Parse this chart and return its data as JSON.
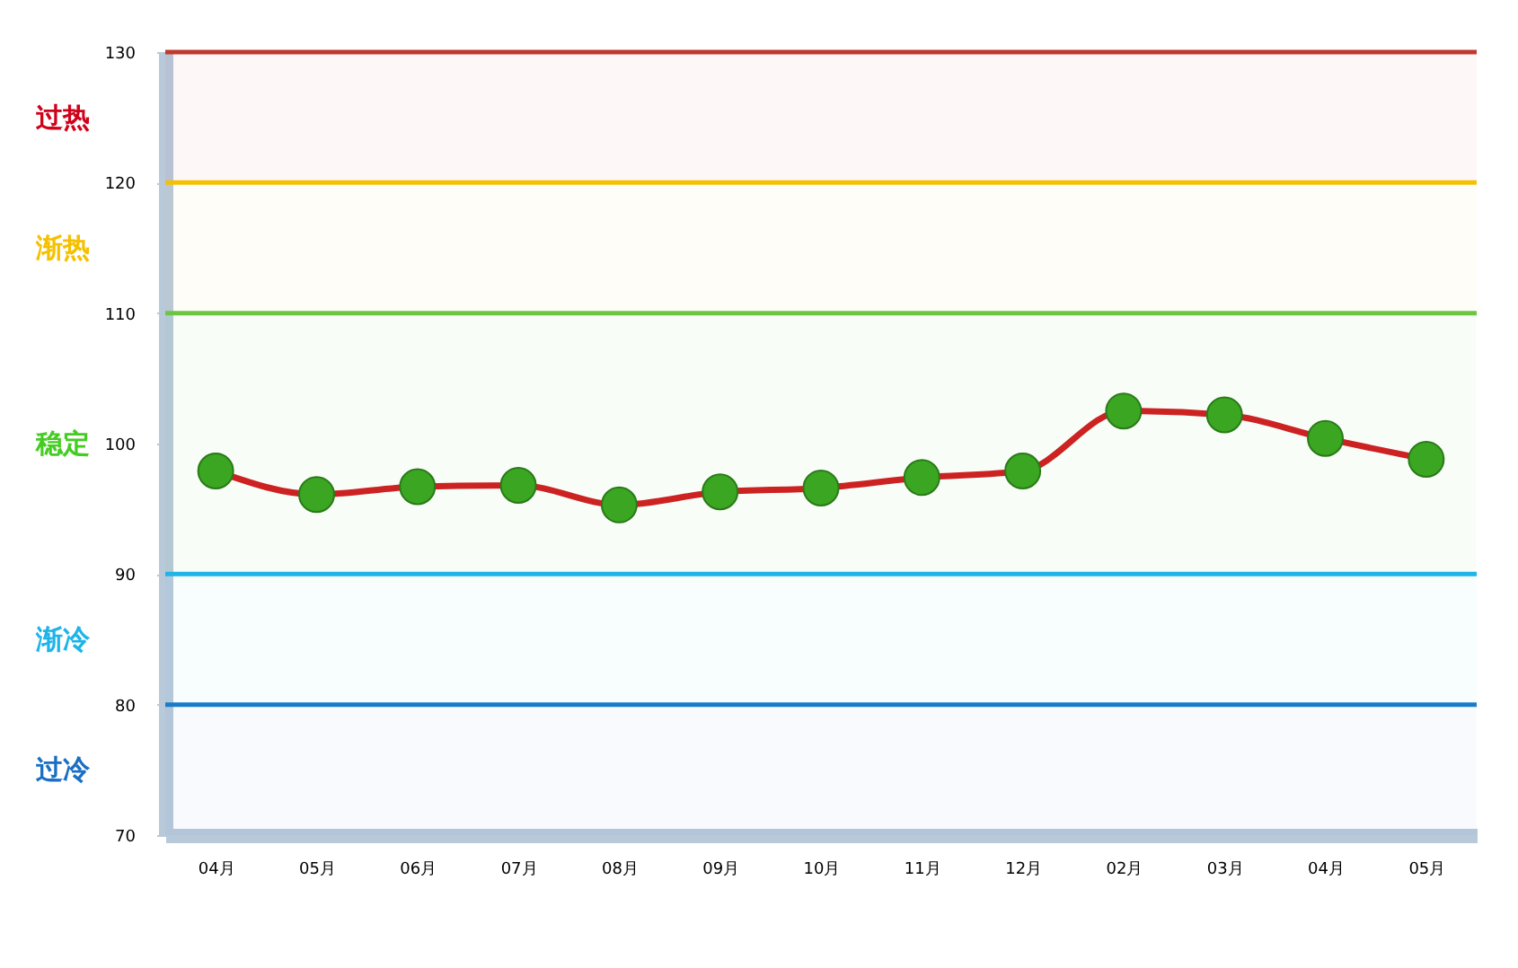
{
  "chart_data": {
    "type": "line",
    "categories": [
      "04月",
      "05月",
      "06月",
      "07月",
      "08月",
      "09月",
      "10月",
      "11月",
      "12月",
      "02月",
      "03月",
      "04月",
      "05月"
    ],
    "series": [
      {
        "color": "#cc2222",
        "values": [
          97.9,
          96.1,
          96.7,
          96.8,
          95.3,
          96.3,
          96.6,
          97.4,
          97.9,
          102.5,
          102.2,
          100.4,
          98.8
        ]
      }
    ],
    "marker": "circle",
    "ylim": [
      70,
      130
    ],
    "yticks": [
      70,
      80,
      90,
      100,
      110,
      120,
      130
    ],
    "grid": false,
    "ref_lines": [
      {
        "axis": "y",
        "value": 130,
        "color": "#c0392b"
      },
      {
        "axis": "y",
        "value": 120,
        "color": "#f5c000"
      },
      {
        "axis": "y",
        "value": 110,
        "color": "#6cc644"
      },
      {
        "axis": "y",
        "value": 90,
        "color": "#1eb4e8"
      },
      {
        "axis": "y",
        "value": 80,
        "color": "#1a7cc9"
      }
    ],
    "bands": [
      {
        "axis": "y",
        "from": 120,
        "to": 130,
        "label": "过热",
        "color": "#d0021b"
      },
      {
        "axis": "y",
        "from": 110,
        "to": 120,
        "label": "渐热",
        "color": "#f5c000"
      },
      {
        "axis": "y",
        "from": 90,
        "to": 110,
        "label": "稳定",
        "color": "#44cc22"
      },
      {
        "axis": "y",
        "from": 80,
        "to": 90,
        "label": "渐冷",
        "color": "#1eb4e8"
      },
      {
        "axis": "y",
        "from": 70,
        "to": 80,
        "label": "过冷",
        "color": "#1a6fc4"
      }
    ]
  }
}
